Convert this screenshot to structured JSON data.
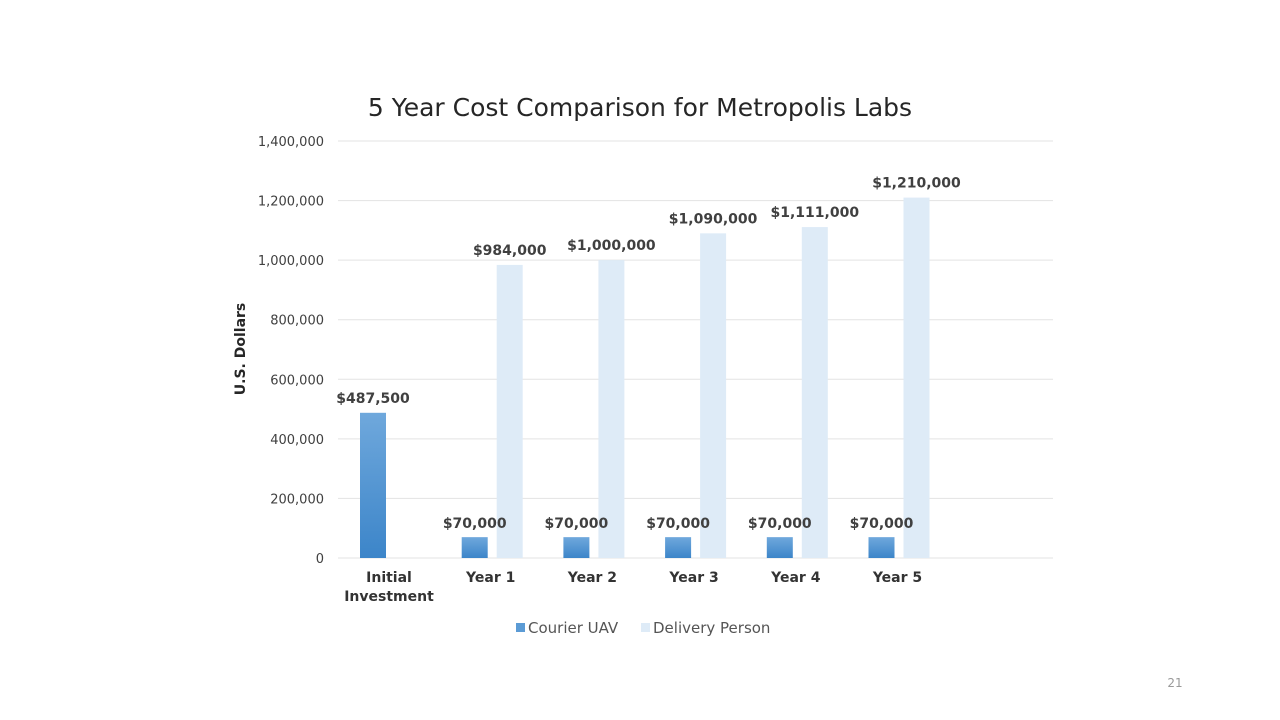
{
  "slide_number": "21",
  "chart_data": {
    "type": "bar",
    "title": "5 Year Cost Comparison for Metropolis Labs",
    "xlabel": "",
    "ylabel": "U.S. Dollars",
    "ylim": [
      0,
      1400000
    ],
    "yticks": [
      0,
      200000,
      400000,
      600000,
      800000,
      1000000,
      1200000,
      1400000
    ],
    "ytick_labels": [
      "0",
      "200,000",
      "400,000",
      "600,000",
      "800,000",
      "1,000,000",
      "1,200,000",
      "1,400,000"
    ],
    "categories": [
      [
        "Initial",
        "Investment"
      ],
      [
        "Year 1"
      ],
      [
        "Year 2"
      ],
      [
        "Year 3"
      ],
      [
        "Year 4"
      ],
      [
        "Year 5"
      ]
    ],
    "series": [
      {
        "name": "Courier UAV",
        "color": "#5b9bd5",
        "values": [
          487500,
          70000,
          70000,
          70000,
          70000,
          70000
        ],
        "labels": [
          "$487,500",
          "$70,000",
          "$70,000",
          "$70,000",
          "$70,000",
          "$70,000"
        ]
      },
      {
        "name": "Delivery Person",
        "color": "#deebf7",
        "values": [
          null,
          984000,
          1000000,
          1090000,
          1111000,
          1210000
        ],
        "labels": [
          null,
          "$984,000",
          "$1,000,000",
          "$1,090,000",
          "$1,111,000",
          "$1,210,000"
        ]
      }
    ],
    "grid": true,
    "legend_position": "bottom"
  }
}
